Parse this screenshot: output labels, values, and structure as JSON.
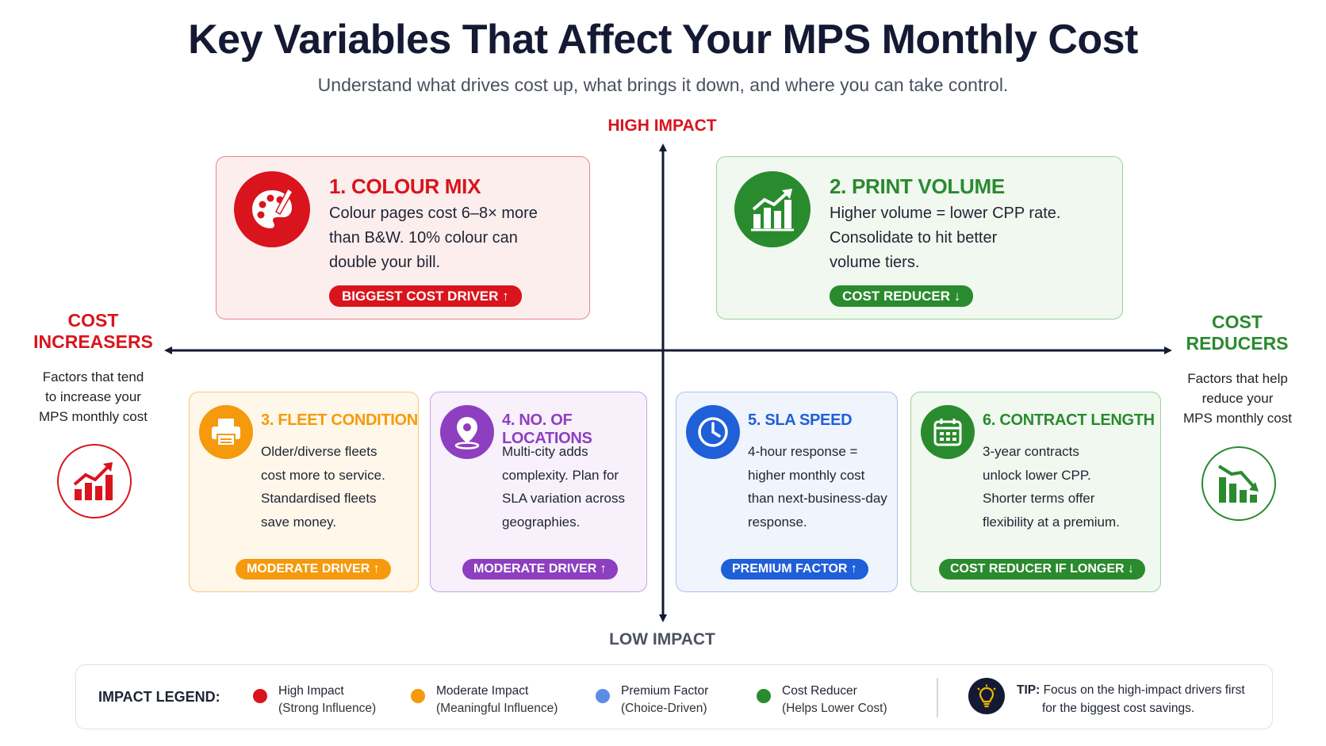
{
  "header": {
    "title": "Key Variables That Affect Your MPS Monthly Cost",
    "subtitle": "Understand what drives cost up, what brings it down, and where you can take control."
  },
  "axes": {
    "high": "HIGH IMPACT",
    "low": "LOW IMPACT"
  },
  "left_panel": {
    "title_line1": "COST",
    "title_line2": "INCREASERS",
    "desc_lines": [
      "Factors that tend",
      "to increase your",
      "MPS monthly cost"
    ],
    "icon": "chart-up-icon",
    "color": "#d9141c"
  },
  "right_panel": {
    "title_line1": "COST",
    "title_line2": "REDUCERS",
    "desc_lines": [
      "Factors that help",
      "reduce your",
      "MPS monthly cost"
    ],
    "icon": "chart-down-icon",
    "color": "#2a8a2e"
  },
  "cards": [
    {
      "title": "1. COLOUR MIX",
      "body": [
        "Colour pages cost 6–8× more",
        "than B&W. 10% colour can",
        "double your bill."
      ],
      "badge": "BIGGEST COST DRIVER ↑",
      "icon": "palette-icon",
      "color": "#d9141c"
    },
    {
      "title": "2. PRINT VOLUME",
      "body": [
        "Higher volume = lower CPP rate.",
        "Consolidate to hit better",
        "volume tiers."
      ],
      "badge": "COST REDUCER ↓",
      "icon": "bar-chart-icon",
      "color": "#2a8a2e"
    },
    {
      "title": "3. FLEET CONDITION",
      "body": [
        "Older/diverse fleets",
        "cost more to service.",
        "Standardised fleets",
        "save money."
      ],
      "badge": "MODERATE DRIVER ↑",
      "icon": "printer-icon",
      "color": "#f59a0c"
    },
    {
      "title": "4. NO. OF LOCATIONS",
      "body": [
        "Multi-city adds",
        "complexity. Plan for",
        "SLA variation across",
        "geographies."
      ],
      "badge": "MODERATE DRIVER ↑",
      "icon": "location-pin-icon",
      "color": "#8e3fbf"
    },
    {
      "title": "5. SLA SPEED",
      "body": [
        "4-hour response =",
        "higher monthly cost",
        "than next-business-day",
        "response."
      ],
      "badge": "PREMIUM FACTOR ↑",
      "icon": "clock-icon",
      "color": "#1f5fd8"
    },
    {
      "title": "6. CONTRACT LENGTH",
      "body": [
        "3-year contracts",
        "unlock lower CPP.",
        "Shorter terms offer",
        "flexibility at a premium."
      ],
      "badge": "COST REDUCER IF LONGER ↓",
      "icon": "calendar-icon",
      "color": "#2a8a2e"
    }
  ],
  "legend": {
    "title": "IMPACT LEGEND:",
    "items": [
      {
        "label": "High Impact",
        "sub": "(Strong Influence)",
        "color": "#d9141c"
      },
      {
        "label": "Moderate Impact",
        "sub": "(Meaningful Influence)",
        "color": "#f59a0c"
      },
      {
        "label": "Premium Factor",
        "sub": "(Choice-Driven)",
        "color": "#5b8de6"
      },
      {
        "label": "Cost Reducer",
        "sub": "(Helps Lower Cost)",
        "color": "#2a8a2e"
      }
    ],
    "tip_label": "TIP:",
    "tip_line1": "Focus on the high-impact drivers first",
    "tip_line2": "for the biggest cost savings.",
    "tip_icon": "lightbulb-icon"
  }
}
